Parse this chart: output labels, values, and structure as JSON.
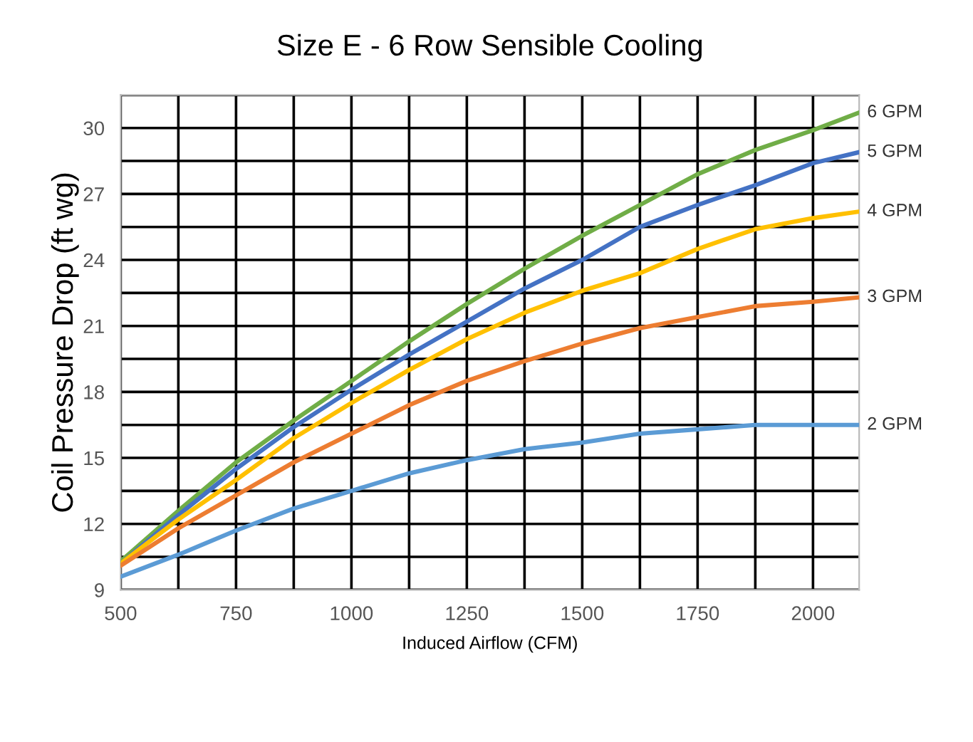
{
  "chart_data": {
    "type": "line",
    "title": "Size E - 6 Row Sensible Cooling",
    "xlabel": "Induced Airflow (CFM)",
    "ylabel": "Coil Pressure Drop (ft wg)",
    "x": [
      500,
      625,
      750,
      875,
      1000,
      1125,
      1250,
      1375,
      1500,
      1625,
      1750,
      1875,
      2000,
      2100
    ],
    "series": [
      {
        "name": "6 GPM",
        "color": "#70ad47",
        "values": [
          10.3,
          12.6,
          14.8,
          16.7,
          18.5,
          20.3,
          22.0,
          23.6,
          25.1,
          26.5,
          27.9,
          29.0,
          29.9,
          30.7
        ]
      },
      {
        "name": "5 GPM",
        "color": "#4472c4",
        "values": [
          10.2,
          12.4,
          14.5,
          16.4,
          18.1,
          19.7,
          21.2,
          22.7,
          24.0,
          25.5,
          26.5,
          27.4,
          28.4,
          28.9
        ]
      },
      {
        "name": "4 GPM",
        "color": "#ffc000",
        "values": [
          10.2,
          12.2,
          14.0,
          15.9,
          17.5,
          19.0,
          20.4,
          21.6,
          22.6,
          23.4,
          24.5,
          25.4,
          25.9,
          26.2
        ]
      },
      {
        "name": "3 GPM",
        "color": "#ed7d31",
        "values": [
          10.1,
          11.8,
          13.3,
          14.8,
          16.1,
          17.4,
          18.5,
          19.4,
          20.2,
          20.9,
          21.4,
          21.9,
          22.1,
          22.3
        ]
      },
      {
        "name": "2 GPM",
        "color": "#5b9bd5",
        "values": [
          9.6,
          10.6,
          11.7,
          12.7,
          13.5,
          14.3,
          14.9,
          15.4,
          15.7,
          16.1,
          16.3,
          16.5,
          16.5,
          16.5
        ]
      }
    ],
    "xlim": [
      500,
      2100
    ],
    "xticks": [
      500,
      {
        "value": 625,
        "label": null
      },
      750,
      {
        "value": 875,
        "label": null
      },
      1000,
      {
        "value": 1125,
        "label": null
      },
      1250,
      {
        "value": 1375,
        "label": null
      },
      1500,
      {
        "value": 1625,
        "label": null
      },
      1750,
      {
        "value": 1875,
        "label": null
      },
      2000
    ],
    "ylim": [
      9,
      31.5
    ],
    "yticks": [
      9,
      {
        "value": 10.5,
        "label": null
      },
      12,
      {
        "value": 13.5,
        "label": null
      },
      15,
      {
        "value": 16.5,
        "label": null
      },
      18,
      {
        "value": 19.5,
        "label": null
      },
      21,
      {
        "value": 22.5,
        "label": null
      },
      24,
      {
        "value": 25.5,
        "label": null
      },
      27,
      {
        "value": 28.5,
        "label": null
      },
      30,
      {
        "value": 31.5,
        "label": null
      }
    ],
    "grid": true,
    "legend": false,
    "line_style": "solid",
    "marker": "none"
  }
}
